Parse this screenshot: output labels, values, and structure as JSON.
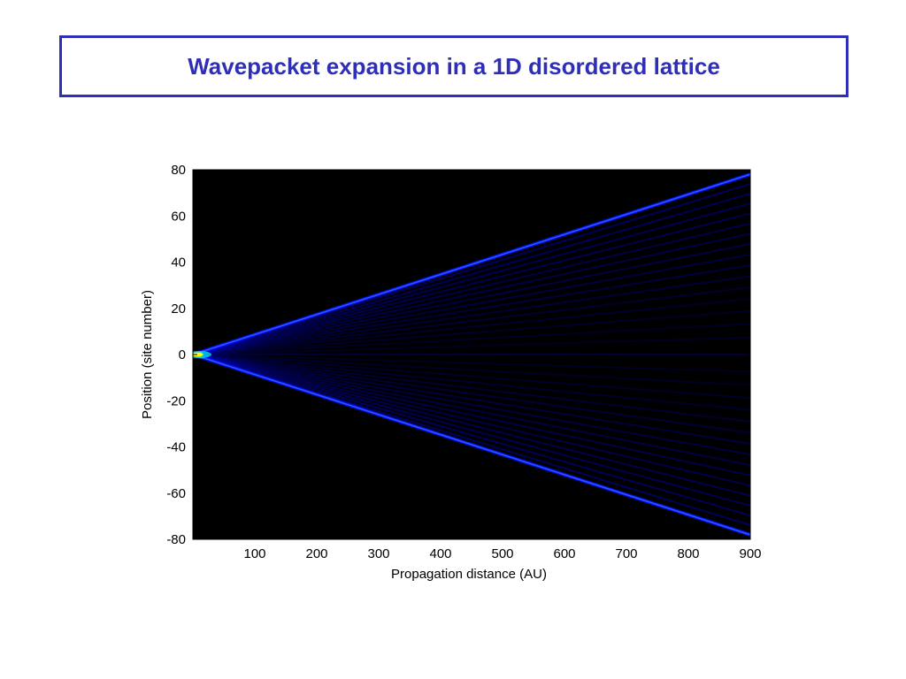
{
  "slide": {
    "title": "Wavepacket expansion in a 1D disordered lattice"
  },
  "colors": {
    "title": "#2e2eb8",
    "plot_background": "#000000",
    "colormap": [
      "#000000",
      "#00008f",
      "#0000ff",
      "#00ffff",
      "#ffff00"
    ]
  },
  "chart_data": {
    "type": "heatmap",
    "title": "",
    "xlabel": "Propagation distance (AU)",
    "ylabel": "Position (site number)",
    "xlim": [
      0,
      900
    ],
    "ylim": [
      -80,
      80
    ],
    "xticks": [
      100,
      200,
      300,
      400,
      500,
      600,
      700,
      800,
      900
    ],
    "yticks": [
      80,
      60,
      40,
      20,
      0,
      -20,
      -40,
      -60,
      -80
    ],
    "grid": false,
    "colormap": "jet",
    "field": {
      "description": "intensity |psi(n,z)|^2 of a wavepacket launched at site 0, spreading ballistically into a cone with bright outer lobes",
      "source_site": 0,
      "envelope_slope_sites_per_AU": 0.0867,
      "envelope_edge_at_x_900": 78
    }
  }
}
